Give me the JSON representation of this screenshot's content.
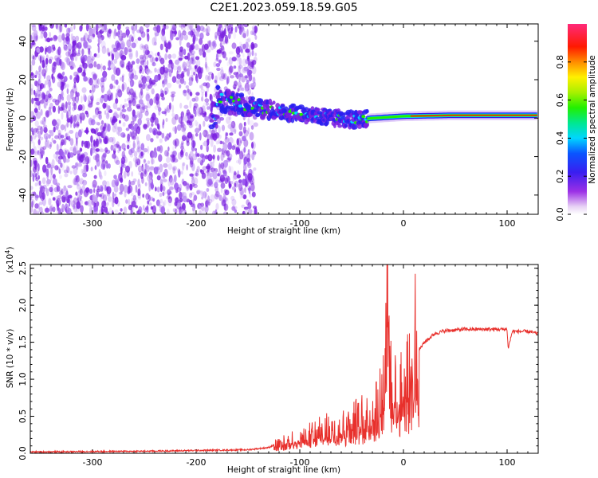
{
  "title": "C2E1.2023.059.18.59.G05",
  "colors": {
    "snr_line": "#e8302c",
    "spectral_base": "#7a1fe0"
  },
  "chart_data": [
    {
      "type": "heatmap",
      "xlabel": "Height of straight line (km)",
      "ylabel": "Frequency (Hz)",
      "xlim": [
        -360,
        130
      ],
      "ylim": [
        -50,
        49
      ],
      "x_ticks": [
        -300,
        -200,
        -100,
        0,
        100
      ],
      "y_ticks": [
        -40,
        -20,
        0,
        20,
        40
      ],
      "colorbar": {
        "label": "Normalized spectral amplitude",
        "range": [
          0,
          1
        ],
        "ticks": [
          0.0,
          0.2,
          0.4,
          0.6,
          0.8
        ],
        "tick_labels": [
          "0.0",
          "0.2",
          "0.4",
          "0.6",
          "0.8"
        ],
        "colormap": "rainbow (white-violet-blue-cyan-green-yellow-red-magenta)"
      },
      "features": {
        "noise_region_x": [
          -360,
          -150
        ],
        "signal_track": [
          {
            "x": -180,
            "y": 10
          },
          {
            "x": -150,
            "y": 6
          },
          {
            "x": -100,
            "y": 2
          },
          {
            "x": -50,
            "y": -1
          },
          {
            "x": -30,
            "y": 0
          },
          {
            "x": 0,
            "y": 1
          },
          {
            "x": 50,
            "y": 1.5
          },
          {
            "x": 100,
            "y": 1.5
          },
          {
            "x": 130,
            "y": 1.5
          }
        ]
      }
    },
    {
      "type": "line",
      "xlabel": "Height of straight line (km)",
      "ylabel": "SNR (10 * v/v)",
      "y_multiplier_label": "(x10",
      "y_multiplier_exp": "4",
      "y_multiplier_close": ")",
      "xlim": [
        -360,
        130
      ],
      "ylim": [
        0,
        2.55
      ],
      "x_ticks": [
        -300,
        -200,
        -100,
        0,
        100
      ],
      "y_ticks": [
        0.0,
        0.5,
        1.0,
        1.5,
        2.0,
        2.5
      ],
      "y_tick_labels": [
        "0.0",
        "0.5",
        "1.0",
        "1.5",
        "2.0",
        "2.5"
      ],
      "series": [
        {
          "x": [
            -360,
            -250,
            -200,
            -150,
            -130,
            -120,
            -100,
            -80,
            -60,
            -40,
            -30,
            -20,
            -17,
            -12,
            -5,
            0,
            8,
            12,
            15,
            20,
            30,
            40,
            60,
            80,
            100,
            101,
            105,
            120,
            130
          ],
          "y": [
            0.02,
            0.03,
            0.04,
            0.05,
            0.08,
            0.15,
            0.25,
            0.35,
            0.45,
            0.55,
            0.7,
            0.95,
            2.55,
            1.05,
            1.0,
            1.05,
            1.2,
            2.05,
            1.4,
            1.5,
            1.62,
            1.66,
            1.68,
            1.68,
            1.68,
            1.42,
            1.65,
            1.65,
            1.62
          ]
        }
      ]
    }
  ]
}
